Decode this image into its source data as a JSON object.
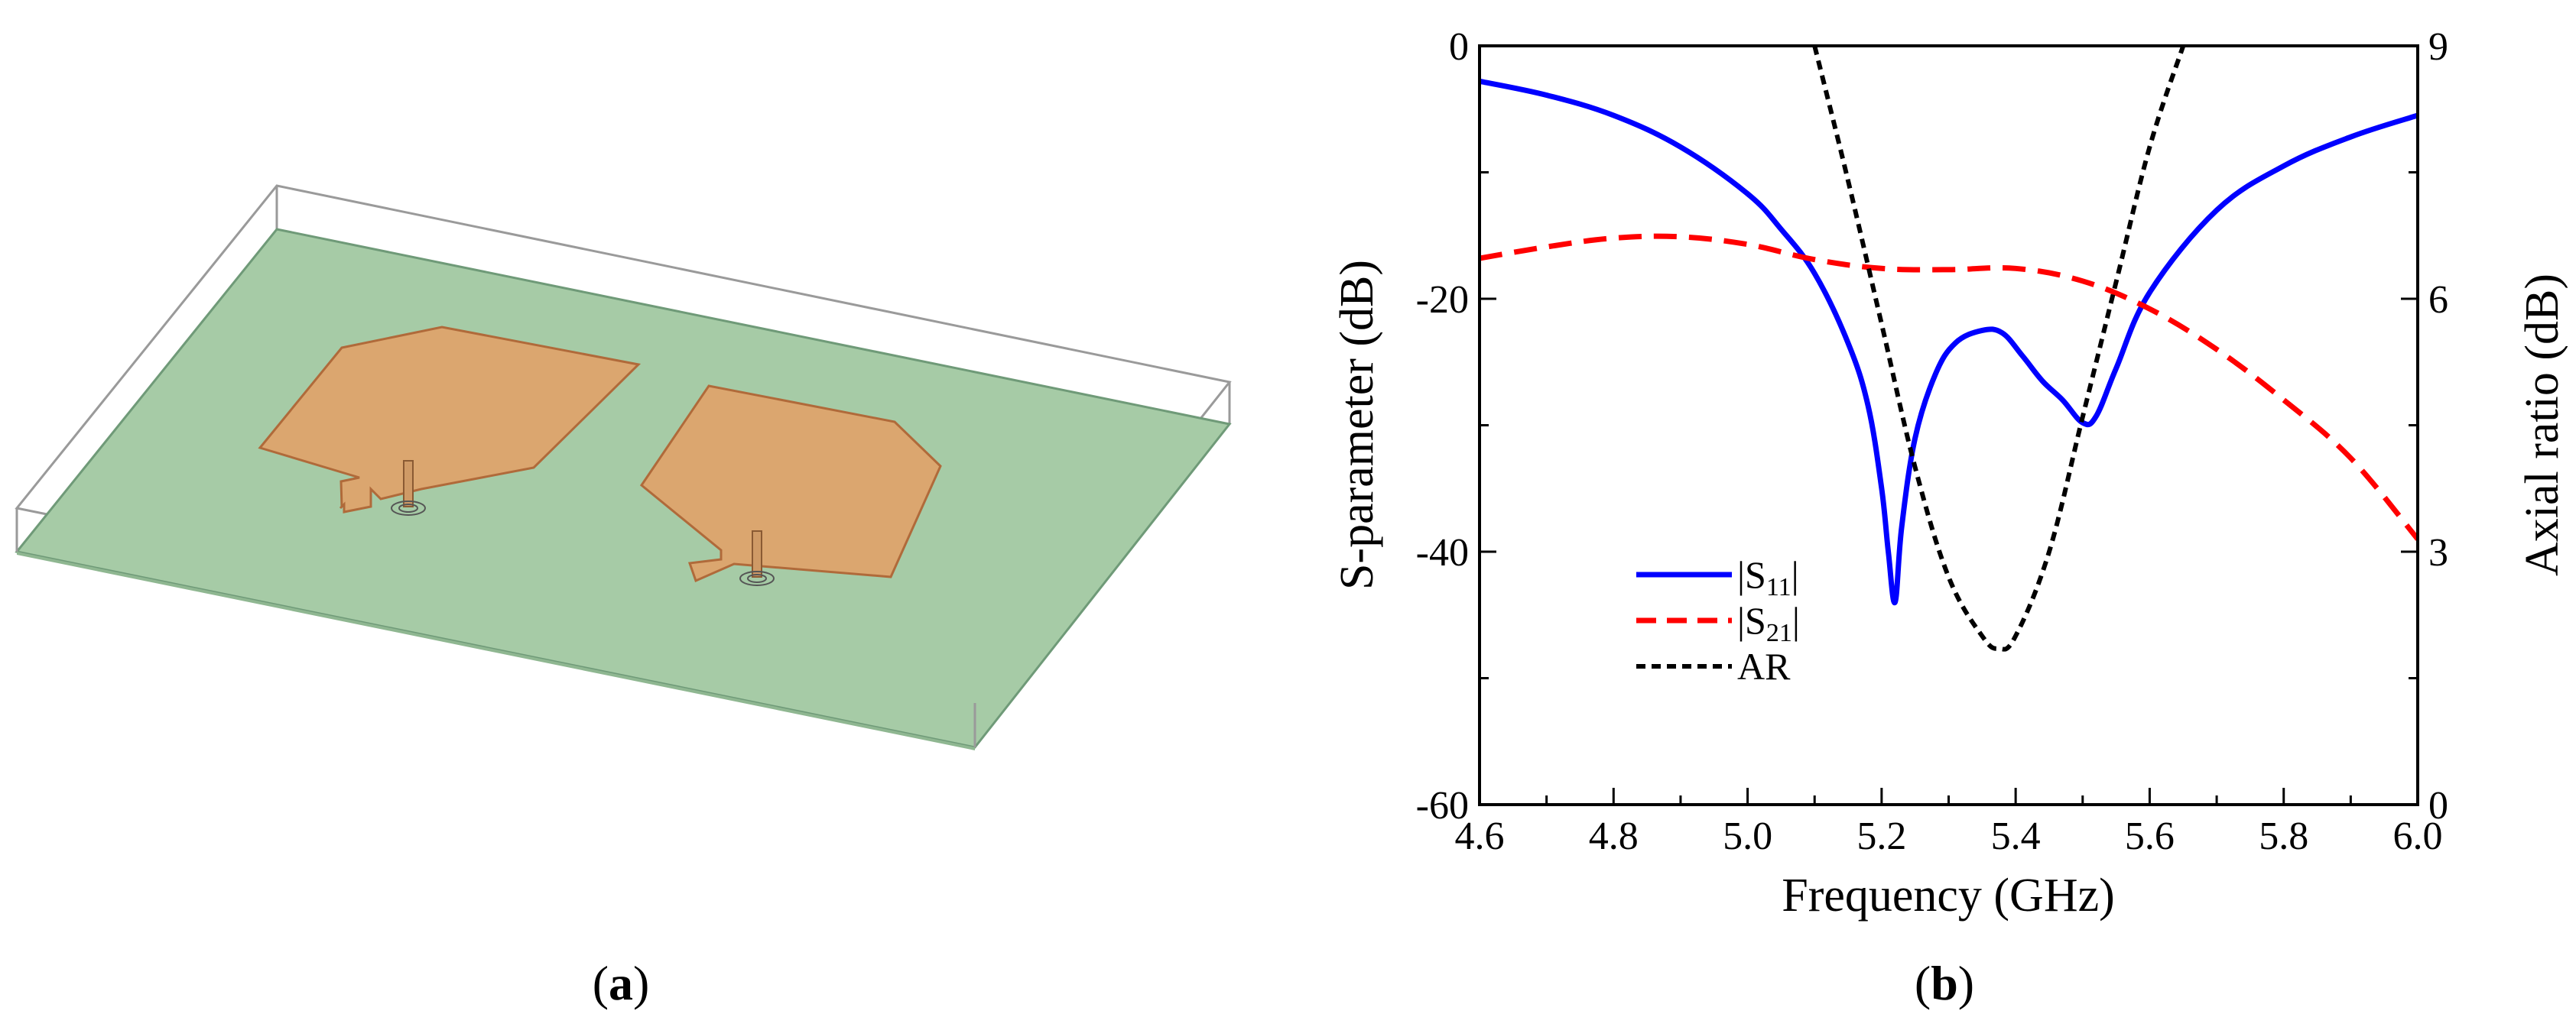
{
  "panels": {
    "a": {
      "caption": "a"
    },
    "b": {
      "caption": "b"
    }
  },
  "colors": {
    "board": "#a6cba6",
    "board_edge": "#4f7a5a",
    "patch": "#dba66f",
    "patch_edge": "#b06a3a",
    "box_edge": "#9a9a9a",
    "s11": "#0000ff",
    "s21": "#ff0000",
    "ar": "#000000"
  },
  "chart_data": {
    "type": "line",
    "xlabel": "Frequency (GHz)",
    "ylabel": "S-parameter (dB)",
    "y2label": "Axial ratio (dB)",
    "xlim": [
      4.6,
      6.0
    ],
    "ylim": [
      -60,
      0
    ],
    "y2lim": [
      0,
      9
    ],
    "xticks": [
      "4.6",
      "4.8",
      "5.0",
      "5.2",
      "5.4",
      "5.6",
      "5.8",
      "6.0"
    ],
    "yticks": [
      "0",
      "-20",
      "-40",
      "-60"
    ],
    "y2ticks": [
      "9",
      "6",
      "3",
      "0"
    ],
    "legend_position": "lower-left",
    "series": [
      {
        "name": "|S11|",
        "label_main": "|S",
        "label_sub": "11",
        "label_end": "|",
        "axis": "left",
        "style": "solid",
        "color": "#0000ff",
        "x": [
          4.6,
          4.7,
          4.8,
          4.9,
          5.0,
          5.05,
          5.1,
          5.15,
          5.18,
          5.2,
          5.21,
          5.22,
          5.23,
          5.25,
          5.28,
          5.31,
          5.35,
          5.38,
          5.41,
          5.44,
          5.47,
          5.5,
          5.52,
          5.55,
          5.6,
          5.7,
          5.8,
          5.9,
          6.0
        ],
        "y": [
          -2.8,
          -3.9,
          -5.5,
          -8.0,
          -11.7,
          -14.5,
          -18.0,
          -23.5,
          -28.5,
          -35.0,
          -40.0,
          -44.0,
          -38.0,
          -31.0,
          -26.0,
          -23.5,
          -22.5,
          -22.7,
          -24.5,
          -26.5,
          -28.0,
          -29.8,
          -29.3,
          -25.5,
          -19.5,
          -13.0,
          -9.5,
          -7.2,
          -5.5
        ]
      },
      {
        "name": "|S21|",
        "label_main": "|S",
        "label_sub": "21",
        "label_end": "|",
        "axis": "left",
        "style": "dashed",
        "color": "#ff0000",
        "x": [
          4.6,
          4.7,
          4.8,
          4.9,
          5.0,
          5.1,
          5.2,
          5.3,
          5.4,
          5.5,
          5.6,
          5.7,
          5.8,
          5.9,
          6.0
        ],
        "y": [
          -16.8,
          -15.9,
          -15.2,
          -15.1,
          -15.7,
          -16.9,
          -17.6,
          -17.7,
          -17.6,
          -18.6,
          -20.8,
          -24.0,
          -28.0,
          -32.6,
          -39.0
        ]
      },
      {
        "name": "AR",
        "label_main": "AR",
        "label_sub": "",
        "label_end": "",
        "axis": "right",
        "style": "dotted",
        "color": "#000000",
        "x": [
          5.1,
          5.15,
          5.2,
          5.25,
          5.3,
          5.35,
          5.375,
          5.4,
          5.45,
          5.5,
          5.55,
          5.6,
          5.65
        ],
        "y": [
          9.0,
          7.4,
          5.7,
          4.0,
          2.7,
          2.0,
          1.85,
          2.0,
          3.0,
          4.6,
          6.2,
          7.8,
          9.0
        ]
      }
    ]
  }
}
